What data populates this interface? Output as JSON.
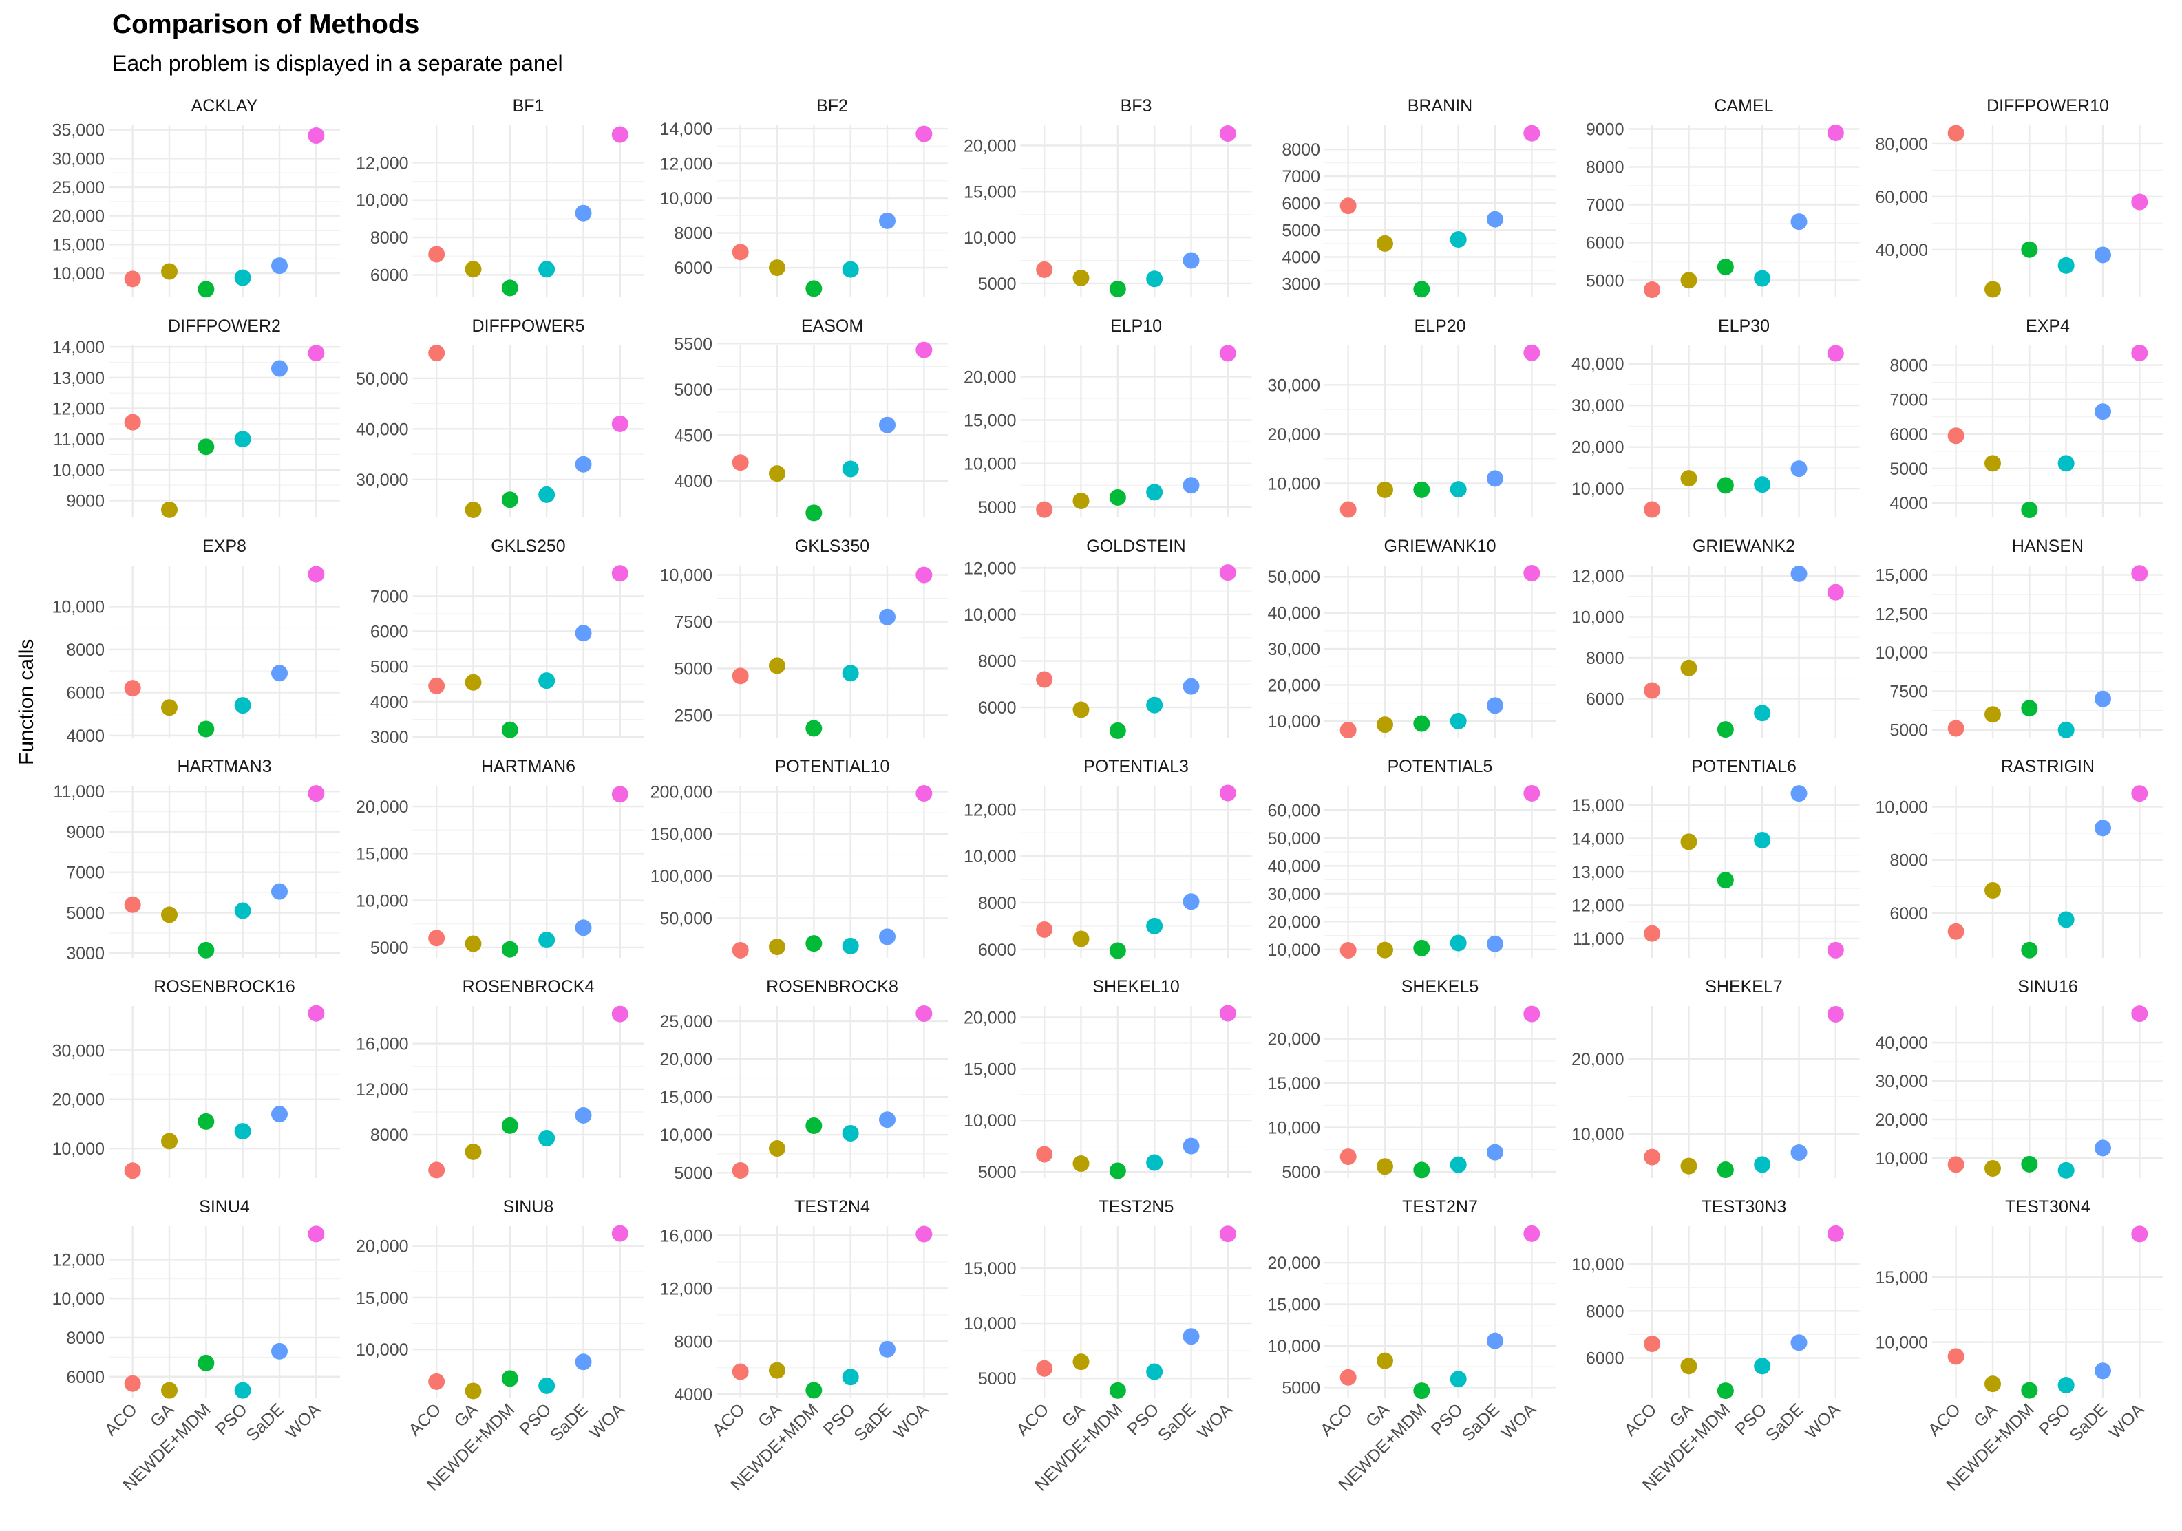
{
  "title": "Comparison of Methods",
  "subtitle": "Each problem is displayed in a separate panel",
  "chart_data": {
    "type": "scatter",
    "title": "Comparison of Methods",
    "subtitle": "Each problem is displayed in a separate panel",
    "xlabel": "",
    "ylabel": "Function calls",
    "categories": [
      "ACO",
      "GA",
      "NEWDE+MDM",
      "PSO",
      "SaDE",
      "WOA"
    ],
    "colors": [
      "#F8766D",
      "#B79F00",
      "#00BA38",
      "#00BFC4",
      "#619CFF",
      "#F564E3"
    ],
    "panels": [
      {
        "name": "ACKLAY",
        "values": [
          9000,
          10300,
          7200,
          9200,
          11300,
          34000
        ],
        "ylim": [
          5800,
          35800
        ],
        "ticks": [
          10000,
          15000,
          20000,
          25000,
          30000,
          35000
        ],
        "tick_labels": [
          "10,000",
          "15,000",
          "20,000",
          "25,000",
          "30,000",
          "35,000"
        ]
      },
      {
        "name": "BF1",
        "values": [
          7100,
          6300,
          5300,
          6300,
          9300,
          13500
        ],
        "ylim": [
          4800,
          14000
        ],
        "ticks": [
          6000,
          8000,
          10000,
          12000
        ],
        "tick_labels": [
          "6000",
          "8000",
          "10,000",
          "12,000"
        ]
      },
      {
        "name": "BF2",
        "values": [
          6900,
          6000,
          4800,
          5900,
          8700,
          13700
        ],
        "ylim": [
          4300,
          14200
        ],
        "ticks": [
          6000,
          8000,
          10000,
          12000,
          14000
        ],
        "tick_labels": [
          "6000",
          "8000",
          "10,000",
          "12,000",
          "14,000"
        ]
      },
      {
        "name": "BF3",
        "values": [
          6500,
          5600,
          4400,
          5500,
          7500,
          21300
        ],
        "ylim": [
          3500,
          22200
        ],
        "ticks": [
          5000,
          10000,
          15000,
          20000
        ],
        "tick_labels": [
          "5000",
          "10,000",
          "15,000",
          "20,000"
        ]
      },
      {
        "name": "BRANIN",
        "values": [
          5900,
          4500,
          2800,
          4650,
          5400,
          8600
        ],
        "ylim": [
          2500,
          8900
        ],
        "ticks": [
          3000,
          4000,
          5000,
          6000,
          7000,
          8000
        ],
        "tick_labels": [
          "3000",
          "4000",
          "5000",
          "6000",
          "7000",
          "8000"
        ]
      },
      {
        "name": "CAMEL",
        "values": [
          4750,
          5000,
          5350,
          5050,
          6550,
          8900
        ],
        "ylim": [
          4550,
          9100
        ],
        "ticks": [
          5000,
          6000,
          7000,
          8000,
          9000
        ],
        "tick_labels": [
          "5000",
          "6000",
          "7000",
          "8000",
          "9000"
        ]
      },
      {
        "name": "DIFFPOWER10",
        "values": [
          84000,
          25000,
          40000,
          34000,
          38000,
          58000
        ],
        "ylim": [
          22000,
          87000
        ],
        "ticks": [
          40000,
          60000,
          80000
        ],
        "tick_labels": [
          "40,000",
          "60,000",
          "80,000"
        ]
      },
      {
        "name": "DIFFPOWER2",
        "values": [
          11550,
          8700,
          10750,
          11000,
          13300,
          13800
        ],
        "ylim": [
          8450,
          14050
        ],
        "ticks": [
          9000,
          10000,
          11000,
          12000,
          13000,
          14000
        ],
        "tick_labels": [
          "9000",
          "10,000",
          "11,000",
          "12,000",
          "13,000",
          "14,000"
        ]
      },
      {
        "name": "DIFFPOWER5",
        "values": [
          55000,
          24000,
          26000,
          27000,
          33000,
          41000
        ],
        "ylim": [
          22500,
          56500
        ],
        "ticks": [
          30000,
          40000,
          50000
        ],
        "tick_labels": [
          "30,000",
          "40,000",
          "50,000"
        ]
      },
      {
        "name": "EASOM",
        "values": [
          4200,
          4080,
          3650,
          4130,
          4610,
          5430
        ],
        "ylim": [
          3600,
          5480
        ],
        "ticks": [
          4000,
          4500,
          5000,
          5500
        ],
        "tick_labels": [
          "4000",
          "4500",
          "5000",
          "5500"
        ]
      },
      {
        "name": "ELP10",
        "values": [
          4700,
          5700,
          6100,
          6700,
          7500,
          22700
        ],
        "ylim": [
          3800,
          23600
        ],
        "ticks": [
          5000,
          10000,
          15000,
          20000
        ],
        "tick_labels": [
          "5000",
          "10,000",
          "15,000",
          "20,000"
        ]
      },
      {
        "name": "ELP20",
        "values": [
          4700,
          8700,
          8700,
          8800,
          11000,
          36500
        ],
        "ylim": [
          3100,
          38000
        ],
        "ticks": [
          10000,
          20000,
          30000
        ],
        "tick_labels": [
          "10,000",
          "20,000",
          "30,000"
        ]
      },
      {
        "name": "ELP30",
        "values": [
          5000,
          12500,
          10800,
          11000,
          14800,
          42500
        ],
        "ylim": [
          3100,
          44400
        ],
        "ticks": [
          10000,
          20000,
          30000,
          40000
        ],
        "tick_labels": [
          "10,000",
          "20,000",
          "30,000",
          "40,000"
        ]
      },
      {
        "name": "EXP4",
        "values": [
          5950,
          5150,
          3800,
          5150,
          6650,
          8350
        ],
        "ylim": [
          3580,
          8570
        ],
        "ticks": [
          4000,
          5000,
          6000,
          7000,
          8000
        ],
        "tick_labels": [
          "4000",
          "5000",
          "6000",
          "7000",
          "8000"
        ]
      },
      {
        "name": "EXP8",
        "values": [
          6200,
          5300,
          4300,
          5400,
          6900,
          11500
        ],
        "ylim": [
          3900,
          11900
        ],
        "ticks": [
          4000,
          6000,
          8000,
          10000
        ],
        "tick_labels": [
          "4000",
          "6000",
          "8000",
          "10,000"
        ]
      },
      {
        "name": "GKLS250",
        "values": [
          4450,
          4550,
          3200,
          4600,
          5950,
          7650
        ],
        "ylim": [
          2980,
          7870
        ],
        "ticks": [
          3000,
          4000,
          5000,
          6000,
          7000
        ],
        "tick_labels": [
          "3000",
          "4000",
          "5000",
          "6000",
          "7000"
        ]
      },
      {
        "name": "GKLS350",
        "values": [
          4600,
          5150,
          1800,
          4750,
          7750,
          10000
        ],
        "ylim": [
          1300,
          10500
        ],
        "ticks": [
          2500,
          5000,
          7500,
          10000
        ],
        "tick_labels": [
          "2500",
          "5000",
          "7500",
          "10,000"
        ]
      },
      {
        "name": "GOLDSTEIN",
        "values": [
          7200,
          5900,
          5000,
          6100,
          6900,
          11800
        ],
        "ylim": [
          4700,
          12100
        ],
        "ticks": [
          6000,
          8000,
          10000,
          12000
        ],
        "tick_labels": [
          "6000",
          "8000",
          "10,000",
          "12,000"
        ]
      },
      {
        "name": "GRIEWANK10",
        "values": [
          7500,
          9000,
          9300,
          10000,
          14300,
          51000
        ],
        "ylim": [
          5400,
          53100
        ],
        "ticks": [
          10000,
          20000,
          30000,
          40000,
          50000
        ],
        "tick_labels": [
          "10,000",
          "20,000",
          "30,000",
          "40,000",
          "50,000"
        ]
      },
      {
        "name": "GRIEWANK2",
        "values": [
          6400,
          7500,
          4500,
          5300,
          12100,
          11200
        ],
        "ylim": [
          4100,
          12500
        ],
        "ticks": [
          6000,
          8000,
          10000,
          12000
        ],
        "tick_labels": [
          "6000",
          "8000",
          "10,000",
          "12,000"
        ]
      },
      {
        "name": "HANSEN",
        "values": [
          5100,
          6000,
          6400,
          5000,
          7000,
          15100
        ],
        "ylim": [
          4500,
          15600
        ],
        "ticks": [
          5000,
          7500,
          10000,
          12500,
          15000
        ],
        "tick_labels": [
          "5000",
          "7500",
          "10,000",
          "12,500",
          "15,000"
        ]
      },
      {
        "name": "HARTMAN3",
        "values": [
          5400,
          4900,
          3150,
          5100,
          6050,
          10900
        ],
        "ylim": [
          2770,
          11280
        ],
        "ticks": [
          3000,
          5000,
          7000,
          9000,
          11000
        ],
        "tick_labels": [
          "3000",
          "5000",
          "7000",
          "9000",
          "11,000"
        ]
      },
      {
        "name": "HARTMAN6",
        "values": [
          6000,
          5400,
          4800,
          5800,
          7100,
          21300
        ],
        "ylim": [
          3900,
          22200
        ],
        "ticks": [
          5000,
          10000,
          15000,
          20000
        ],
        "tick_labels": [
          "5000",
          "10,000",
          "15,000",
          "20,000"
        ]
      },
      {
        "name": "POTENTIAL10",
        "values": [
          12000,
          16000,
          20000,
          17000,
          28000,
          198000
        ],
        "ylim": [
          3000,
          207000
        ],
        "ticks": [
          50000,
          100000,
          150000,
          200000
        ],
        "tick_labels": [
          "50,000",
          "100,000",
          "150,000",
          "200,000"
        ]
      },
      {
        "name": "POTENTIAL3",
        "values": [
          6850,
          6450,
          5950,
          7000,
          8050,
          12700
        ],
        "ylim": [
          5640,
          13010
        ],
        "ticks": [
          6000,
          8000,
          10000,
          12000
        ],
        "tick_labels": [
          "6000",
          "8000",
          "10,000",
          "12,000"
        ]
      },
      {
        "name": "POTENTIAL5",
        "values": [
          9700,
          9800,
          10500,
          12300,
          12000,
          66000
        ],
        "ylim": [
          7000,
          68700
        ],
        "ticks": [
          10000,
          20000,
          30000,
          40000,
          50000,
          60000
        ],
        "tick_labels": [
          "10,000",
          "20,000",
          "30,000",
          "40,000",
          "50,000",
          "60,000"
        ]
      },
      {
        "name": "POTENTIAL6",
        "values": [
          11150,
          13900,
          12750,
          13950,
          15350,
          10650
        ],
        "ylim": [
          10420,
          15580
        ],
        "ticks": [
          11000,
          12000,
          13000,
          14000,
          15000
        ],
        "tick_labels": [
          "11,000",
          "12,000",
          "13,000",
          "14,000",
          "15,000"
        ]
      },
      {
        "name": "RASTRIGIN",
        "values": [
          5300,
          6850,
          4600,
          5750,
          9200,
          10500
        ],
        "ylim": [
          4310,
          10790
        ],
        "ticks": [
          6000,
          8000,
          10000
        ],
        "tick_labels": [
          "6000",
          "8000",
          "10,000"
        ]
      },
      {
        "name": "ROSENBROCK16",
        "values": [
          5500,
          11500,
          15500,
          13500,
          17000,
          37500
        ],
        "ylim": [
          4000,
          39000
        ],
        "ticks": [
          10000,
          20000,
          30000
        ],
        "tick_labels": [
          "10,000",
          "20,000",
          "30,000"
        ]
      },
      {
        "name": "ROSENBROCK4",
        "values": [
          4900,
          6500,
          8800,
          7700,
          9700,
          18600
        ],
        "ylim": [
          4200,
          19300
        ],
        "ticks": [
          8000,
          12000,
          16000
        ],
        "tick_labels": [
          "8000",
          "12,000",
          "16,000"
        ]
      },
      {
        "name": "ROSENBROCK8",
        "values": [
          5300,
          8200,
          11200,
          10200,
          12000,
          26000
        ],
        "ylim": [
          4300,
          27000
        ],
        "ticks": [
          5000,
          10000,
          15000,
          20000,
          25000
        ],
        "tick_labels": [
          "5000",
          "10,000",
          "15,000",
          "20,000",
          "25,000"
        ]
      },
      {
        "name": "SHEKEL10",
        "values": [
          6700,
          5800,
          5100,
          5900,
          7500,
          20400
        ],
        "ylim": [
          4400,
          21100
        ],
        "ticks": [
          5000,
          10000,
          15000,
          20000
        ],
        "tick_labels": [
          "5000",
          "10,000",
          "15,000",
          "20,000"
        ]
      },
      {
        "name": "SHEKEL5",
        "values": [
          6700,
          5600,
          5200,
          5800,
          7200,
          22800
        ],
        "ylim": [
          4300,
          23700
        ],
        "ticks": [
          5000,
          10000,
          15000,
          20000
        ],
        "tick_labels": [
          "5000",
          "10,000",
          "15,000",
          "20,000"
        ]
      },
      {
        "name": "SHEKEL7",
        "values": [
          6900,
          5700,
          5200,
          5900,
          7500,
          26000
        ],
        "ylim": [
          4100,
          27100
        ],
        "ticks": [
          10000,
          20000
        ],
        "tick_labels": [
          "10,000",
          "20,000"
        ]
      },
      {
        "name": "SINU16",
        "values": [
          8300,
          7300,
          8400,
          6800,
          12600,
          47500
        ],
        "ylim": [
          4800,
          49500
        ],
        "ticks": [
          10000,
          20000,
          30000,
          40000
        ],
        "tick_labels": [
          "10,000",
          "20,000",
          "30,000",
          "40,000"
        ]
      },
      {
        "name": "SINU4",
        "values": [
          5650,
          5300,
          6700,
          5300,
          7300,
          13300
        ],
        "ylim": [
          4900,
          13700
        ],
        "ticks": [
          6000,
          8000,
          10000,
          12000
        ],
        "tick_labels": [
          "6000",
          "8000",
          "10,000",
          "12,000"
        ]
      },
      {
        "name": "SINU8",
        "values": [
          6900,
          6000,
          7200,
          6500,
          8800,
          21200
        ],
        "ylim": [
          5300,
          21900
        ],
        "ticks": [
          10000,
          15000,
          20000
        ],
        "tick_labels": [
          "10,000",
          "15,000",
          "20,000"
        ]
      },
      {
        "name": "TEST2N4",
        "values": [
          5700,
          5800,
          4300,
          5300,
          7400,
          16100
        ],
        "ylim": [
          3700,
          16700
        ],
        "ticks": [
          4000,
          8000,
          12000,
          16000
        ],
        "tick_labels": [
          "4000",
          "8000",
          "12,000",
          "16,000"
        ]
      },
      {
        "name": "TEST2N5",
        "values": [
          5900,
          6500,
          3900,
          5600,
          8800,
          18100
        ],
        "ylim": [
          3200,
          18800
        ],
        "ticks": [
          5000,
          10000,
          15000
        ],
        "tick_labels": [
          "5000",
          "10,000",
          "15,000"
        ]
      },
      {
        "name": "TEST2N7",
        "values": [
          6200,
          8200,
          4600,
          6000,
          10600,
          23500
        ],
        "ylim": [
          3700,
          24400
        ],
        "ticks": [
          5000,
          10000,
          15000,
          20000
        ],
        "tick_labels": [
          "5000",
          "10,000",
          "15,000",
          "20,000"
        ]
      },
      {
        "name": "TEST30N3",
        "values": [
          6600,
          5650,
          4600,
          5650,
          6650,
          11300
        ],
        "ylim": [
          4280,
          11620
        ],
        "ticks": [
          6000,
          8000,
          10000
        ],
        "tick_labels": [
          "6000",
          "8000",
          "10,000"
        ]
      },
      {
        "name": "TEST30N4",
        "values": [
          8900,
          6800,
          6300,
          6700,
          7800,
          18300
        ],
        "ylim": [
          5700,
          18900
        ],
        "ticks": [
          10000,
          15000
        ],
        "tick_labels": [
          "10,000",
          "15,000"
        ]
      }
    ]
  }
}
